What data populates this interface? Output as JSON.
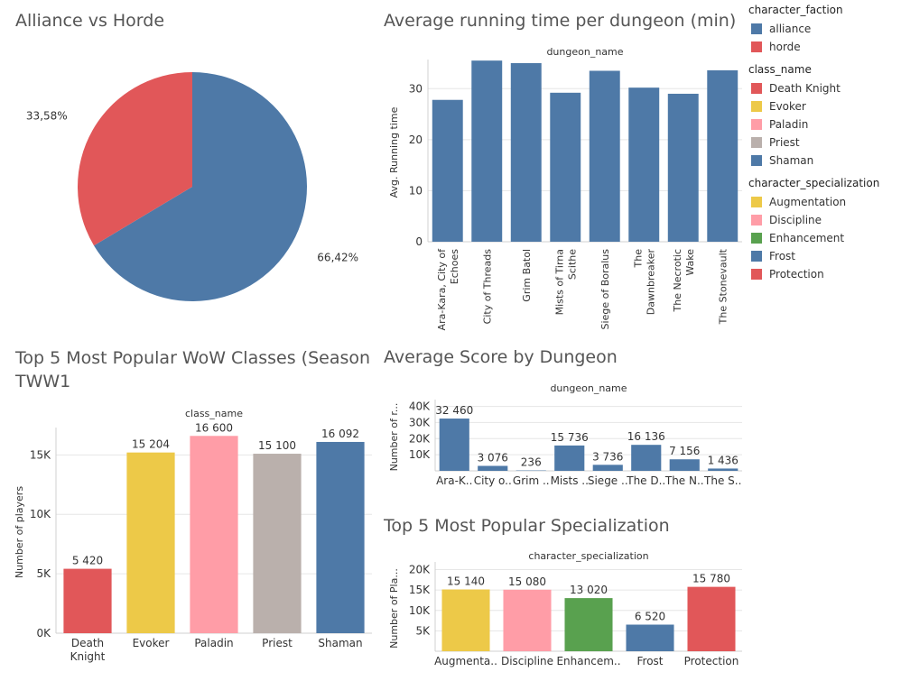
{
  "colors": {
    "blue": "#4e79a7",
    "red": "#e15759",
    "yellow": "#edc948",
    "pink": "#ff9da7",
    "taupe": "#bab0ac",
    "green": "#59a14f",
    "grid": "#e6e6e6",
    "text": "#333333"
  },
  "legend": {
    "groups": [
      {
        "title": "character_faction",
        "items": [
          {
            "label": "alliance",
            "color": "#4e79a7"
          },
          {
            "label": "horde",
            "color": "#e15759"
          }
        ]
      },
      {
        "title": "class_name",
        "items": [
          {
            "label": "Death Knight",
            "color": "#e15759"
          },
          {
            "label": "Evoker",
            "color": "#edc948"
          },
          {
            "label": "Paladin",
            "color": "#ff9da7"
          },
          {
            "label": "Priest",
            "color": "#bab0ac"
          },
          {
            "label": "Shaman",
            "color": "#4e79a7"
          }
        ]
      },
      {
        "title": "character_specialization",
        "items": [
          {
            "label": "Augmentation",
            "color": "#edc948"
          },
          {
            "label": "Discipline",
            "color": "#ff9da7"
          },
          {
            "label": "Enhancement",
            "color": "#59a14f"
          },
          {
            "label": "Frost",
            "color": "#4e79a7"
          },
          {
            "label": "Protection",
            "color": "#e15759"
          }
        ]
      }
    ]
  },
  "chart_data": [
    {
      "id": "faction",
      "type": "pie",
      "title": "Alliance vs Horde",
      "slices": [
        {
          "label": "alliance",
          "value": 66.42,
          "display": "66,42%",
          "color": "#4e79a7"
        },
        {
          "label": "horde",
          "value": 33.58,
          "display": "33,58%",
          "color": "#e15759"
        }
      ]
    },
    {
      "id": "runtime",
      "type": "bar",
      "title": "Average running time per dungeon (min)",
      "header": "dungeon_name",
      "ylabel": "Avg. Running time",
      "ylim": [
        0,
        35
      ],
      "yticks": [
        0,
        10,
        20,
        30
      ],
      "categories": [
        "Ara-Kara, City of Echoes",
        "City of Threads",
        "Grim Batol",
        "Mists of Tirna Scithe",
        "Siege of Boralus",
        "The Dawnbreaker",
        "The Necrotic Wake",
        "The Stonevault"
      ],
      "tick_labels": [
        [
          "Ara-Kara, City of",
          "Echoes"
        ],
        [
          "City of Threads"
        ],
        [
          "Grim Batol"
        ],
        [
          "Mists of Tirna",
          "Scithe"
        ],
        [
          "Siege of Boralus"
        ],
        [
          "The",
          "Dawnbreaker"
        ],
        [
          "The Necrotic",
          "Wake"
        ],
        [
          "The Stonevault"
        ]
      ],
      "values": [
        27.8,
        35.5,
        35.0,
        29.2,
        33.5,
        30.2,
        29.0,
        33.6
      ],
      "color": "#4e79a7"
    },
    {
      "id": "classes",
      "type": "bar",
      "title": "Top 5 Most Popular WoW Classes (Season TWW1",
      "header": "class_name",
      "ylabel": "Number of players",
      "ylim": [
        0,
        17000
      ],
      "yticks": [
        0,
        5000,
        10000,
        15000
      ],
      "ytick_labels": [
        "0K",
        "5K",
        "10K",
        "15K"
      ],
      "categories": [
        "Death Knight",
        "Evoker",
        "Paladin",
        "Priest",
        "Shaman"
      ],
      "tick_labels": [
        [
          "Death",
          "Knight"
        ],
        [
          "Evoker"
        ],
        [
          "Paladin"
        ],
        [
          "Priest"
        ],
        [
          "Shaman"
        ]
      ],
      "values": [
        5420,
        15204,
        16600,
        15100,
        16092
      ],
      "value_labels": [
        "5 420",
        "15 204",
        "16 600",
        "15 100",
        "16 092"
      ],
      "colors": [
        "#e15759",
        "#edc948",
        "#ff9da7",
        "#bab0ac",
        "#4e79a7"
      ]
    },
    {
      "id": "score",
      "type": "bar",
      "title": "Average Score by Dungeon",
      "header": "dungeon_name",
      "ylabel": "Number of r...",
      "ylim": [
        0,
        42000
      ],
      "yticks": [
        10000,
        20000,
        30000,
        40000
      ],
      "ytick_labels": [
        "10K",
        "20K",
        "30K",
        "40K"
      ],
      "categories": [
        "Ara-Kara, City of Echoes",
        "City of Threads",
        "Grim Batol",
        "Mists of Tirna Scithe",
        "Siege of Boralus",
        "The Dawnbreaker",
        "The Necrotic Wake",
        "The Stonevault"
      ],
      "tick_labels": [
        [
          "Ara-K.."
        ],
        [
          "City o.."
        ],
        [
          "Grim .."
        ],
        [
          "Mists .."
        ],
        [
          "Siege .."
        ],
        [
          "The D.."
        ],
        [
          "The N.."
        ],
        [
          "The S.."
        ]
      ],
      "values": [
        32460,
        3076,
        236,
        15736,
        3736,
        16136,
        7156,
        1436
      ],
      "value_labels": [
        "32 460",
        "3 076",
        "236",
        "15 736",
        "3 736",
        "16 136",
        "7 156",
        "1 436"
      ],
      "color": "#4e79a7"
    },
    {
      "id": "specs",
      "type": "bar",
      "title": "Top 5 Most Popular Specialization",
      "header": "character_specialization",
      "ylabel": "Number of Pla...",
      "ylim": [
        0,
        21000
      ],
      "yticks": [
        5000,
        10000,
        15000,
        20000
      ],
      "ytick_labels": [
        "5K",
        "10K",
        "15K",
        "20K"
      ],
      "categories": [
        "Augmentation",
        "Discipline",
        "Enhancement",
        "Frost",
        "Protection"
      ],
      "tick_labels": [
        [
          "Augmenta.."
        ],
        [
          "Discipline"
        ],
        [
          "Enhancem.."
        ],
        [
          "Frost"
        ],
        [
          "Protection"
        ]
      ],
      "values": [
        15140,
        15080,
        13020,
        6520,
        15780
      ],
      "value_labels": [
        "15 140",
        "15 080",
        "13 020",
        "6 520",
        "15 780"
      ],
      "colors": [
        "#edc948",
        "#ff9da7",
        "#59a14f",
        "#4e79a7",
        "#e15759"
      ]
    }
  ]
}
